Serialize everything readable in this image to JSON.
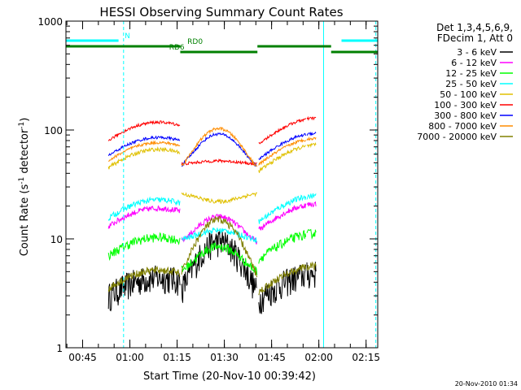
{
  "chart_data": {
    "type": "line",
    "title": "HESSI Observing Summary Count Rates",
    "xlabel": "Start Time (20-Nov-10 00:39:42)",
    "ylabel_main": "Count Rate (s",
    "ylabel_sup1": "-1",
    "ylabel_mid": " detector",
    "ylabel_sup2": "-1",
    "ylabel_end": ")",
    "y_scale": "log",
    "ylim": [
      1,
      1000
    ],
    "y_ticks": [
      {
        "value": 1,
        "label": "1"
      },
      {
        "value": 10,
        "label": "10"
      },
      {
        "value": 100,
        "label": "100"
      },
      {
        "value": 1000,
        "label": "1000"
      }
    ],
    "x_unit": "minutes since 00:39:42",
    "xlim": [
      0,
      99
    ],
    "x_ticks": [
      {
        "t": 5.3,
        "label": "00:45"
      },
      {
        "t": 20.3,
        "label": "01:00"
      },
      {
        "t": 35.3,
        "label": "01:15"
      },
      {
        "t": 50.3,
        "label": "01:30"
      },
      {
        "t": 65.3,
        "label": "01:45"
      },
      {
        "t": 80.3,
        "label": "02:00"
      },
      {
        "t": 95.3,
        "label": "02:15"
      }
    ],
    "x_minor_step": 5,
    "timestamp": "20-Nov-2010 01:34",
    "legend_header": [
      "Det 1,3,4,5,6,9,",
      "FDecim 1, Att 0"
    ],
    "series": [
      {
        "name": "3 - 6 keV",
        "color": "#000000",
        "baseline": 3.0,
        "peak": 9.5,
        "noise": 0.3
      },
      {
        "name": "6 - 12 keV",
        "color": "#ff00ff",
        "baseline": 13.0,
        "peak": 16.0,
        "noise": 0.06
      },
      {
        "name": "12 - 25 keV",
        "color": "#00ff00",
        "baseline": 7.0,
        "peak": 8.5,
        "noise": 0.1
      },
      {
        "name": "25 - 50 keV",
        "color": "#00ffff",
        "baseline": 15.5,
        "peak": 12.0,
        "noise": 0.06
      },
      {
        "name": "50 - 100 keV",
        "color": "#e0c000",
        "baseline": 45.0,
        "peak": 22.0,
        "noise": 0.04
      },
      {
        "name": "100 - 300 keV",
        "color": "#ff0000",
        "baseline": 80.0,
        "peak": 52.0,
        "noise": 0.03
      },
      {
        "name": "300 - 800 keV",
        "color": "#0000ff",
        "baseline": 58.0,
        "peak": 92.0,
        "noise": 0.03
      },
      {
        "name": "800 - 7000 keV",
        "color": "#ff8c00",
        "baseline": 52.0,
        "peak": 103.0,
        "noise": 0.03
      },
      {
        "name": "7000 - 20000 keV",
        "color": "#808000",
        "baseline": 3.5,
        "peak": 15.0,
        "noise": 0.08
      }
    ],
    "data_interval": {
      "start": 13.5,
      "end": 79.5,
      "gap_start": 76.2
    },
    "sun_gaps": [
      {
        "start": 36.2,
        "end": 36.7
      },
      {
        "start": 60.8,
        "end": 61.1
      }
    ],
    "flag_bars": [
      {
        "label": "N",
        "color": "#00ffff",
        "y": 8,
        "spans": [
          [
            0,
            16.7
          ],
          [
            87.5,
            99
          ]
        ]
      },
      {
        "label": "RD0",
        "color": "#008000",
        "y": 15,
        "spans": [
          [
            0,
            36.3
          ],
          [
            60.8,
            84.2
          ]
        ]
      },
      {
        "label": "RD6",
        "color": "#008000",
        "y": 22,
        "spans": [
          [
            36.3,
            60.8
          ],
          [
            84.2,
            99
          ]
        ]
      }
    ],
    "flag_labels": [
      {
        "text": "N",
        "t": 19.5,
        "row": "N"
      },
      {
        "text": "RD0",
        "t": 41.0,
        "row": "RD0"
      },
      {
        "text": "RD6",
        "t": 35.2,
        "row": "RD6"
      }
    ],
    "vlines": [
      {
        "t": 0,
        "style": "solid"
      },
      {
        "t": 18.3,
        "style": "dashed"
      },
      {
        "t": 81.8,
        "style": "solid"
      },
      {
        "t": 98.4,
        "style": "dashed"
      }
    ]
  }
}
